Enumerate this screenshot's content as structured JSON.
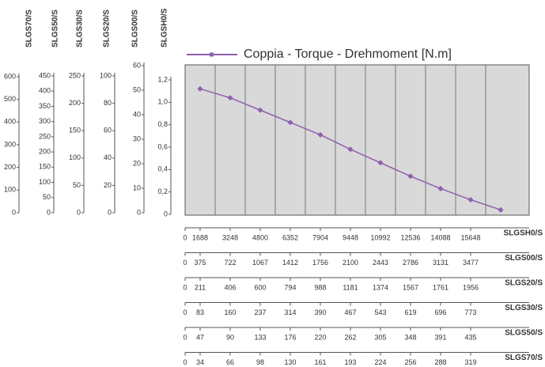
{
  "chart_data": {
    "type": "line",
    "series": [
      {
        "name": "Coppia - Torque - Drehmoment [N.m]",
        "color": "#8e5fb0",
        "values": [
          1.12,
          1.04,
          0.93,
          0.82,
          0.71,
          0.58,
          0.46,
          0.34,
          0.23,
          0.13,
          0.04
        ]
      }
    ],
    "ylim": [
      0,
      1.2
    ],
    "y_axes": [
      {
        "name": "SLGS70/S",
        "ylim": [
          0,
          600
        ],
        "yticks": [
          0,
          100,
          200,
          300,
          400,
          500,
          600
        ]
      },
      {
        "name": "SLGS50/S",
        "ylim": [
          0,
          450
        ],
        "yticks": [
          0,
          50,
          100,
          150,
          200,
          250,
          300,
          350,
          400,
          450
        ]
      },
      {
        "name": "SLGS30/S",
        "ylim": [
          0,
          250
        ],
        "yticks": [
          0,
          50,
          100,
          150,
          200,
          250
        ]
      },
      {
        "name": "SLGS20/S",
        "ylim": [
          0,
          100
        ],
        "yticks": [
          0,
          20,
          40,
          60,
          80,
          100
        ]
      },
      {
        "name": "SLGS00/S",
        "ylim": [
          0,
          60
        ],
        "yticks": [
          0,
          10,
          20,
          30,
          40,
          50,
          60
        ]
      },
      {
        "name": "SLGSH0/S",
        "ylim": [
          0,
          1.2
        ],
        "yticks": [
          0,
          {
            "value": 0.2,
            "label": "0,2"
          },
          {
            "value": 0.4,
            "label": "0,4"
          },
          {
            "value": 0.6,
            "label": "0,6"
          },
          {
            "value": 0.8,
            "label": "0,8"
          },
          {
            "value": 1.0,
            "label": "1,0"
          },
          {
            "value": 1.2,
            "label": "1,2"
          }
        ]
      }
    ],
    "x_axes": [
      {
        "name": "SLGSH0/S",
        "ticks": [
          0,
          1688,
          3248,
          4800,
          6352,
          7904,
          9448,
          10992,
          12536,
          14088,
          15648
        ]
      },
      {
        "name": "SLGS00/S",
        "ticks": [
          0,
          375,
          722,
          1067,
          1412,
          1756,
          2100,
          2443,
          2786,
          3131,
          3477
        ]
      },
      {
        "name": "SLGS20/S",
        "ticks": [
          0,
          211,
          406,
          600,
          794,
          988,
          1181,
          1374,
          1567,
          1761,
          1956
        ]
      },
      {
        "name": "SLGS30/S",
        "ticks": [
          0,
          83,
          160,
          237,
          314,
          390,
          467,
          543,
          619,
          696,
          773
        ]
      },
      {
        "name": "SLGS50/S",
        "ticks": [
          0,
          47,
          90,
          133,
          176,
          220,
          262,
          305,
          348,
          391,
          435
        ]
      },
      {
        "name": "SLGS70/S",
        "ticks": [
          0,
          34,
          66,
          98,
          130,
          161,
          193,
          224,
          256,
          288,
          319
        ]
      }
    ]
  }
}
